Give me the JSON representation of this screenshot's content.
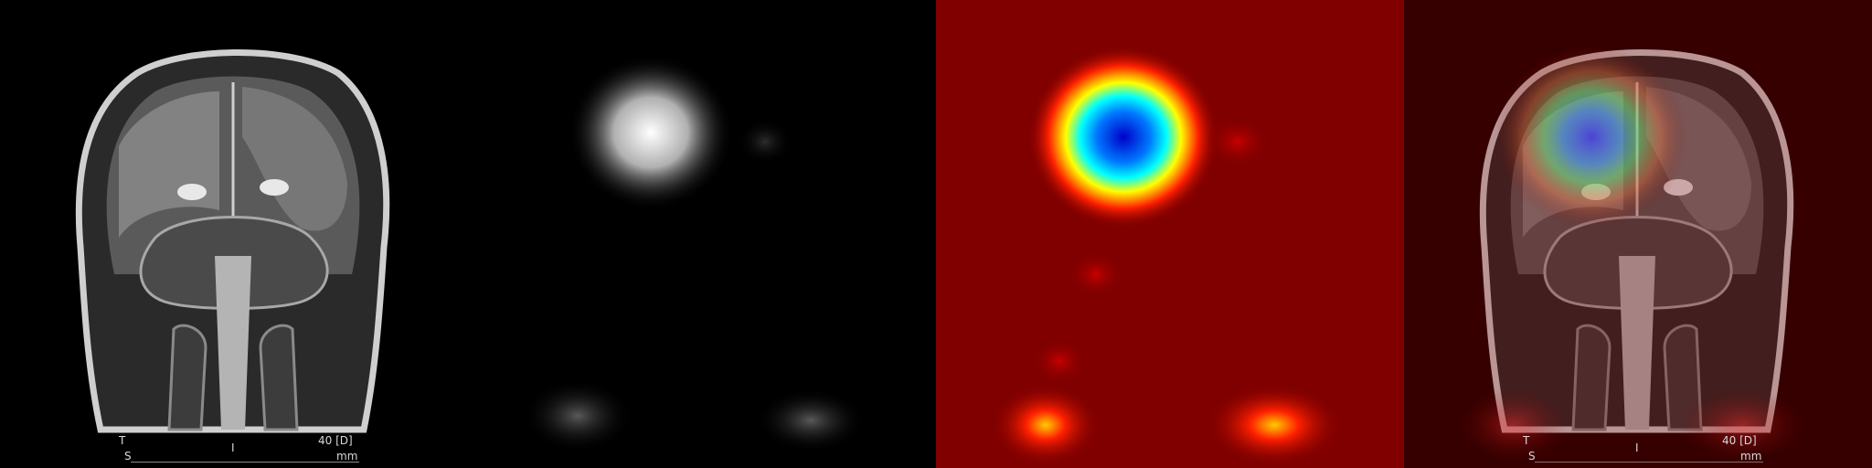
{
  "panels": [
    {
      "kind": "mri",
      "annotations": {
        "orient_top": "T",
        "orient_bottom": "S",
        "center": "I",
        "right_top": "40 [D]",
        "right_bottom": "mm"
      }
    },
    {
      "kind": "heatmap-grayscale"
    },
    {
      "kind": "heatmap-jet"
    },
    {
      "kind": "overlay",
      "annotations": {
        "orient_top": "T",
        "orient_bottom": "S",
        "center": "I",
        "right_top": "40 [D]",
        "right_bottom": "mm"
      }
    }
  ],
  "colors": {
    "background": "#000000",
    "jet_low": "#800000",
    "jet_mid": "#ff0000",
    "jet_high": "#0000ff"
  }
}
